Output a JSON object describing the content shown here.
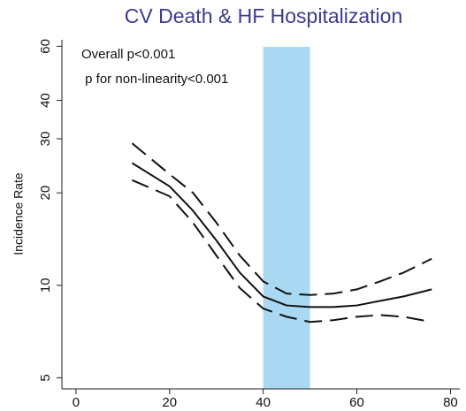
{
  "chart_data": {
    "type": "line",
    "title": "CV Death & HF Hospitalization",
    "y_label": "Incidence Rate",
    "annotations": [
      "Overall p<0.001",
      " p for non-linearity<0.001"
    ],
    "ylog": true,
    "xlim": [
      -3,
      82
    ],
    "xticks": [
      0,
      20,
      40,
      60,
      80
    ],
    "ylim": [
      4.6,
      63
    ],
    "yticks": [
      5,
      10,
      20,
      30,
      40,
      60
    ],
    "shaded_region": [
      40,
      50
    ],
    "shaded_color": "#a9d9f2",
    "x": [
      12,
      20,
      25,
      30,
      35,
      40,
      45,
      50,
      55,
      60,
      65,
      70,
      76
    ],
    "series": [
      {
        "color": "#111111",
        "dashed": false,
        "values": [
          25,
          21,
          17.5,
          14,
          11,
          9.2,
          8.6,
          8.5,
          8.5,
          8.6,
          8.9,
          9.2,
          9.7
        ]
      },
      {
        "color": "#111111",
        "dashed": true,
        "values": [
          29,
          23,
          20,
          16,
          12.5,
          10.3,
          9.4,
          9.3,
          9.4,
          9.7,
          10.3,
          11,
          12.2
        ]
      },
      {
        "color": "#111111",
        "dashed": true,
        "values": [
          22,
          19.5,
          16,
          12.5,
          9.8,
          8.4,
          7.9,
          7.6,
          7.7,
          7.9,
          8,
          7.9,
          7.6
        ]
      }
    ]
  }
}
